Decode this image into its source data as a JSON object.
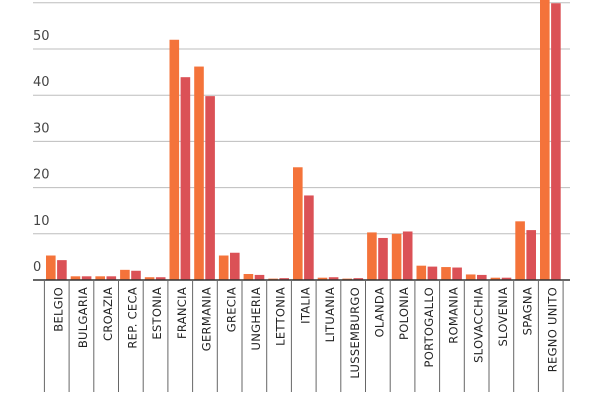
{
  "chart_data": {
    "type": "bar",
    "categories": [
      "BELGIO",
      "BULGARIA",
      "CROAZIA",
      "REP. CECA",
      "ESTONIA",
      "FRANCIA",
      "GERMANIA",
      "GRECIA",
      "UNGHERIA",
      "LETTONIA",
      "ITALIA",
      "LITUANIA",
      "LUSSEMBURGO",
      "OLANDA",
      "POLONIA",
      "PORTOGALLO",
      "ROMANIA",
      "SLOVACCHIA",
      "SLOVENIA",
      "SPAGNA",
      "REGNO UNITO"
    ],
    "series": [
      {
        "color": "#f4733a",
        "values": [
          5.3,
          0.8,
          0.8,
          2.2,
          0.6,
          52.0,
          46.2,
          5.3,
          1.3,
          0.3,
          24.4,
          0.5,
          0.3,
          10.3,
          10.0,
          3.1,
          2.8,
          1.2,
          0.5,
          12.7,
          62.5
        ]
      },
      {
        "color": "#db5156",
        "values": [
          4.3,
          0.8,
          0.8,
          2.0,
          0.6,
          43.9,
          39.8,
          5.9,
          1.1,
          0.4,
          18.3,
          0.6,
          0.4,
          9.1,
          10.5,
          2.9,
          2.7,
          1.1,
          0.5,
          10.8,
          59.9
        ]
      }
    ],
    "yticks": [
      0,
      10,
      20,
      30,
      40,
      50
    ],
    "ylim": [
      0,
      60
    ],
    "grid": true,
    "title": "",
    "xlabel": "",
    "ylabel": ""
  }
}
